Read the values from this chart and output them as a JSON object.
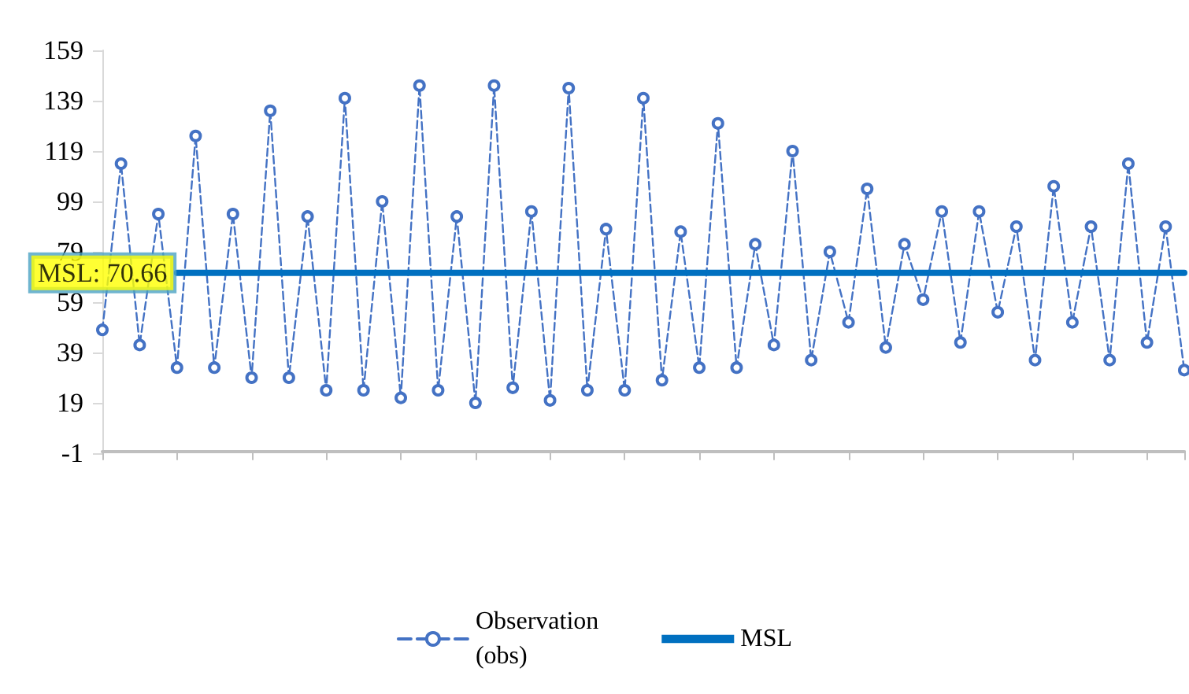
{
  "chart_data": {
    "type": "line",
    "categories": [
      null,
      null,
      null,
      null,
      null,
      null,
      null,
      null,
      null,
      null,
      null,
      null,
      null,
      null,
      null,
      null,
      null,
      null,
      null,
      null,
      null,
      null,
      null,
      null,
      null,
      null,
      null,
      null,
      null,
      null,
      null,
      null,
      null,
      null,
      null,
      null,
      null,
      null,
      null,
      null,
      null,
      null,
      null,
      null,
      null,
      null,
      null,
      null,
      null,
      null,
      null,
      null,
      null,
      null,
      null,
      null,
      null,
      null,
      null
    ],
    "ylim": [
      -1,
      159
    ],
    "yticks": [
      -1,
      19,
      39,
      59,
      79,
      99,
      119,
      139,
      159
    ],
    "grid": false,
    "legend": "bottom",
    "series": [
      {
        "name": "Observation\n(obs)",
        "color": "#4472c4",
        "marker": "circle",
        "line_style": "dashed",
        "values": [
          48,
          114,
          42,
          94,
          33,
          125,
          33,
          94,
          29,
          135,
          29,
          93,
          24,
          140,
          24,
          99,
          21,
          145,
          24,
          93,
          19,
          145,
          25,
          95,
          20,
          144,
          24,
          88,
          24,
          140,
          28,
          87,
          33,
          130,
          33,
          82,
          42,
          119,
          36,
          79,
          51,
          104,
          41,
          82,
          60,
          95,
          43,
          95,
          55,
          89,
          36,
          105,
          51,
          89,
          36,
          114,
          43,
          89,
          32
        ]
      },
      {
        "name": "MSL",
        "color": "#0070c0",
        "marker": "none",
        "line_style": "solid",
        "values": [
          null,
          null,
          null,
          null,
          70.66,
          70.66,
          70.66,
          70.66,
          70.66,
          70.66,
          70.66,
          70.66,
          70.66,
          70.66,
          70.66,
          70.66,
          70.66,
          70.66,
          70.66,
          70.66,
          70.66,
          70.66,
          70.66,
          70.66,
          70.66,
          70.66,
          70.66,
          70.66,
          70.66,
          70.66,
          70.66,
          70.66,
          70.66,
          70.66,
          70.66,
          70.66,
          70.66,
          70.66,
          70.66,
          70.66,
          70.66,
          70.66,
          70.66,
          70.66,
          70.66,
          70.66,
          70.66,
          70.66,
          70.66,
          70.66,
          70.66,
          70.66,
          70.66,
          70.66,
          70.66,
          70.66,
          70.66,
          70.66,
          70.66
        ]
      }
    ],
    "annotations": [
      {
        "text": "MSL: 70.66",
        "y": 70.66
      }
    ]
  }
}
